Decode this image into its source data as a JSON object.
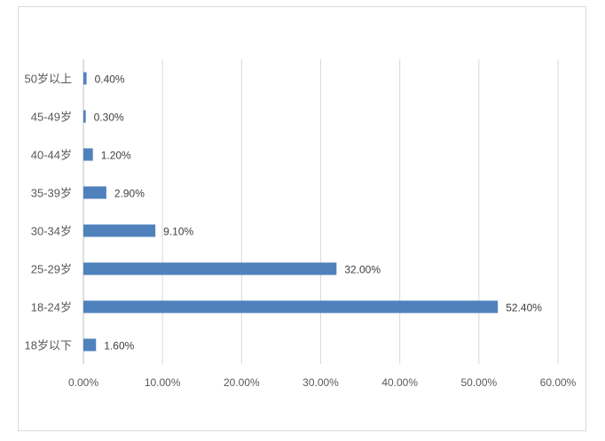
{
  "chart_data": {
    "type": "bar",
    "orientation": "horizontal",
    "title": "",
    "xlabel": "",
    "ylabel": "",
    "categories": [
      "18岁以下",
      "18-24岁",
      "25-29岁",
      "30-34岁",
      "35-39岁",
      "40-44岁",
      "45-49岁",
      "50岁以上"
    ],
    "values": [
      1.6,
      52.4,
      32.0,
      9.1,
      2.9,
      1.2,
      0.3,
      0.4
    ],
    "data_labels": [
      "1.60%",
      "52.40%",
      "32.00%",
      "9.10%",
      "2.90%",
      "1.20%",
      "0.30%",
      "0.40%"
    ],
    "xlim": [
      0,
      60
    ],
    "x_ticks": [
      "0.00%",
      "10.00%",
      "20.00%",
      "30.00%",
      "40.00%",
      "50.00%",
      "60.00%"
    ],
    "grid": "vertical",
    "legend": "none",
    "bar_color": "#4f81bd"
  }
}
